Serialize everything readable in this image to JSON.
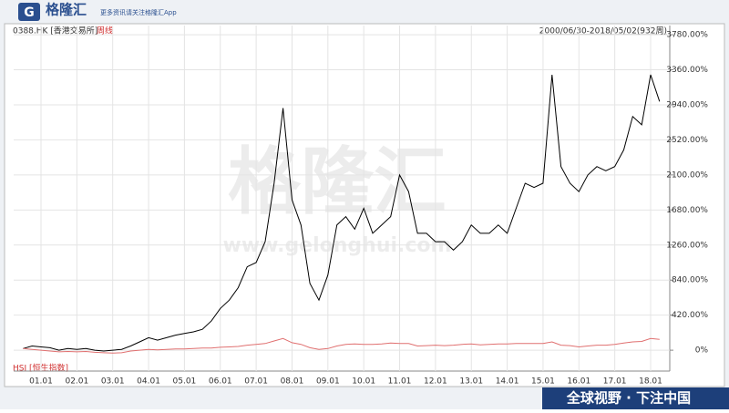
{
  "brand": {
    "logo": "格隆汇",
    "tagline": "更多资讯请关注格隆汇App",
    "slogan": "全球视野 · 下注中国"
  },
  "watermark": {
    "main": "格隆汇",
    "url": "www.gelonghui.com"
  },
  "chart_data": {
    "type": "line",
    "period": "周线",
    "range": "2000/06/30-2018/05/02(932周)",
    "categories": [
      null,
      null,
      "01.01",
      null,
      null,
      null,
      "02.01",
      null,
      null,
      null,
      "03.01",
      null,
      null,
      null,
      "04.01",
      null,
      null,
      null,
      "05.01",
      null,
      null,
      null,
      "06.01",
      null,
      null,
      null,
      "07.01",
      null,
      null,
      null,
      "08.01",
      null,
      null,
      null,
      "09.01",
      null,
      null,
      null,
      "10.01",
      null,
      null,
      null,
      "11.01",
      null,
      null,
      null,
      "12.01",
      null,
      null,
      null,
      "13.01",
      null,
      null,
      null,
      "14.01",
      null,
      null,
      null,
      "15.01",
      null,
      null,
      null,
      "16.01",
      null,
      null,
      null,
      "17.01",
      null,
      null,
      null,
      "18.01",
      null
    ],
    "series": [
      {
        "name": "0388.HK [香港交易所]",
        "color": "#000000",
        "values": [
          20,
          50,
          40,
          30,
          0,
          20,
          10,
          20,
          0,
          -10,
          0,
          10,
          50,
          100,
          150,
          120,
          150,
          180,
          200,
          220,
          250,
          350,
          500,
          600,
          750,
          1000,
          1050,
          1300,
          2000,
          2900,
          1800,
          1500,
          800,
          600,
          900,
          1500,
          1600,
          1450,
          1700,
          1400,
          1500,
          1600,
          2100,
          1900,
          1400,
          1400,
          1300,
          1300,
          1200,
          1300,
          1500,
          1400,
          1400,
          1500,
          1400,
          1700,
          2000,
          1950,
          2000,
          3300,
          2200,
          2000,
          1900,
          2100,
          2200,
          2150,
          2200,
          2400,
          2800,
          2700,
          3300,
          2980
        ]
      },
      {
        "name": "HSI [恒生指数]",
        "color": "#e07070",
        "values": [
          20,
          10,
          0,
          -10,
          -20,
          -15,
          -20,
          -15,
          -25,
          -30,
          -35,
          -30,
          -10,
          0,
          10,
          5,
          10,
          15,
          15,
          20,
          25,
          25,
          35,
          40,
          45,
          60,
          70,
          80,
          110,
          140,
          90,
          70,
          30,
          10,
          20,
          50,
          70,
          75,
          70,
          70,
          75,
          85,
          80,
          80,
          50,
          55,
          60,
          55,
          60,
          70,
          75,
          65,
          70,
          75,
          75,
          80,
          80,
          80,
          80,
          100,
          60,
          55,
          40,
          50,
          60,
          60,
          70,
          85,
          100,
          105,
          140,
          130
        ]
      }
    ],
    "ylim": [
      -250,
      3890
    ],
    "yticks": [
      {
        "value": 0,
        "label": "0%"
      },
      {
        "value": 420,
        "label": "420.00%"
      },
      {
        "value": 840,
        "label": "840.00%"
      },
      {
        "value": 1260,
        "label": "1260.00%"
      },
      {
        "value": 1680,
        "label": "1680.00%"
      },
      {
        "value": 2100,
        "label": "2100.00%"
      },
      {
        "value": 2520,
        "label": "2520.00%"
      },
      {
        "value": 2940,
        "label": "2940.00%"
      },
      {
        "value": 3360,
        "label": "3360.00%"
      },
      {
        "value": 3780,
        "label": "3780.00%"
      }
    ],
    "grid": true
  }
}
